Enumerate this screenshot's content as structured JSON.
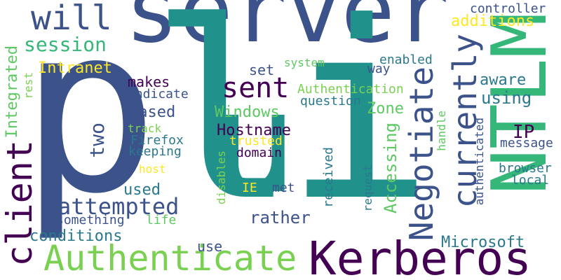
{
  "words": {
    "server": "server",
    "p": "p",
    "l": "l",
    "u": "u",
    "i": "i",
    "ntlm": "NTLM",
    "kerberos": "Kerberos",
    "authenticate": "Authenticate",
    "negotiate": "Negotiate",
    "client": "client",
    "currently": "currently",
    "will": "will",
    "sent": "sent",
    "attempted": "attempted",
    "session": "session",
    "hostname": "Hostname",
    "additions": "additions",
    "controller": "controller",
    "intranet": "Intranet",
    "integrated": "Integrated",
    "makes": "makes",
    "indicate": "indicate",
    "based": "based",
    "two": "two",
    "track": "track",
    "firefox": "Firefox",
    "keeping": "keeping",
    "host": "host",
    "used": "used",
    "something": "something",
    "life": "life",
    "conditions": "conditions",
    "use": "use",
    "rather": "rather",
    "microsoft": "Microsoft",
    "windows": "Windows",
    "zone": "Zone",
    "set": "set",
    "system": "system",
    "way": "way",
    "enabled": "enabled",
    "authentication": "Authentication",
    "question": "question",
    "aware": "aware",
    "using": "using",
    "ip": "IP",
    "message": "message",
    "browser": "browser",
    "local": "local",
    "authenticated": "authenticated",
    "handle": "handle",
    "accessing": "Accessing",
    "request": "request",
    "received": "received",
    "disables": "disables",
    "trusted": "trusted",
    "domain": "domain",
    "ie": "IE",
    "met": "met",
    "rest": "rest"
  },
  "colors": {
    "navy": "#3b528b",
    "purple": "#440154",
    "teal": "#21918c",
    "green": "#5ec962",
    "lime": "#7ad151",
    "yellow": "#fde725",
    "sea": "#2a788e",
    "mint": "#35b779"
  }
}
